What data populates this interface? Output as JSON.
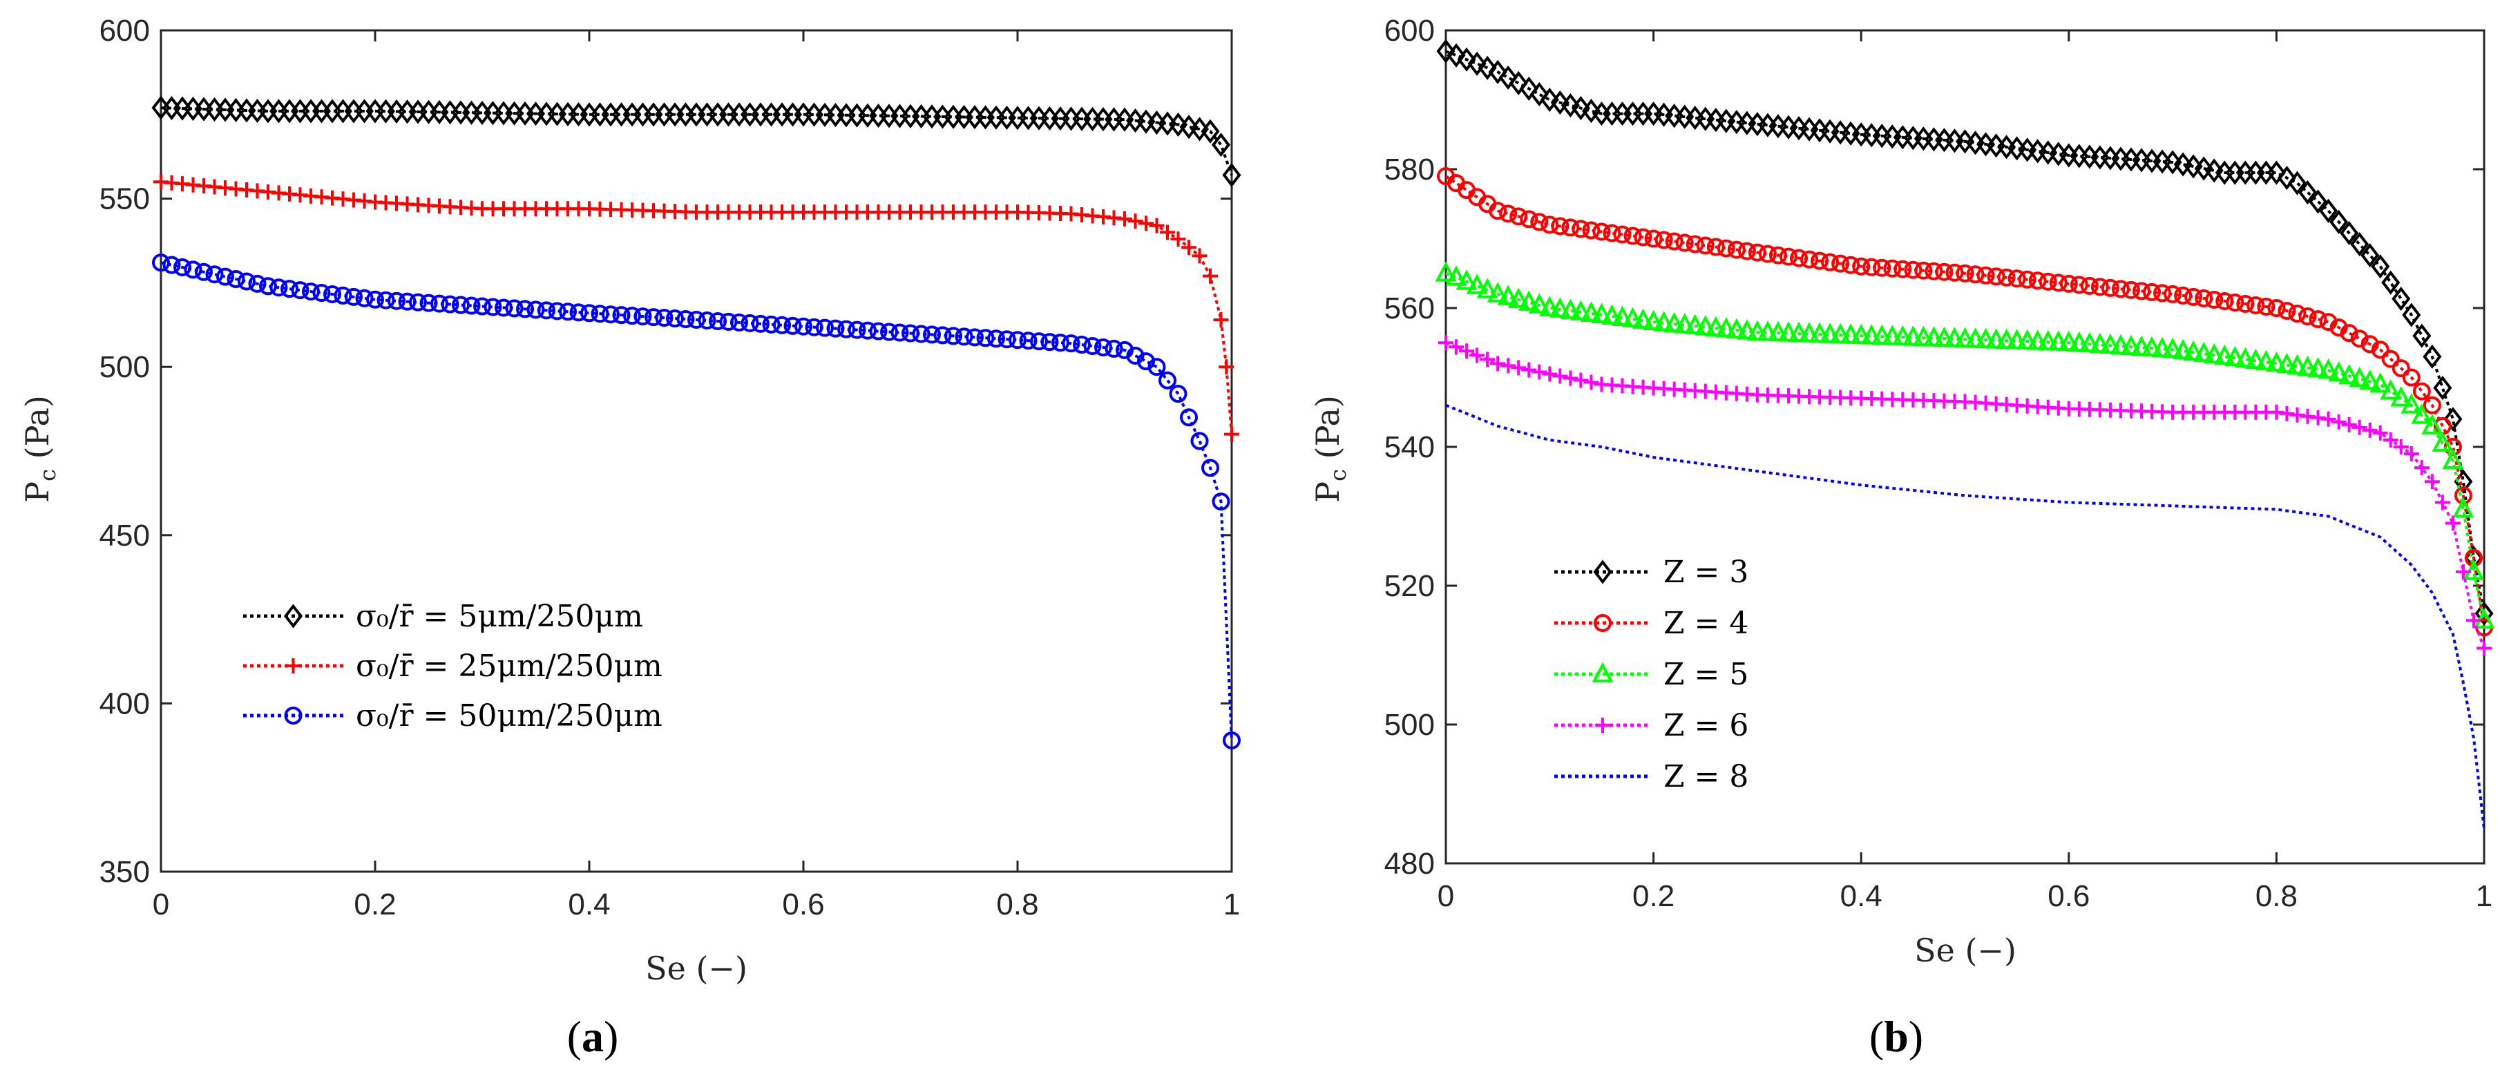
{
  "chart_data": [
    {
      "type": "line",
      "caption": "(a)",
      "caption_parts": {
        "open": "(",
        "letter": "a",
        "close": ")"
      },
      "xlabel": "Se (−)",
      "ylabel": "P_c (Pa)",
      "ylabel_parts": {
        "main": "P",
        "sub": "c",
        "rest": " (Pa)"
      },
      "xlim": [
        0,
        1
      ],
      "ylim": [
        350,
        600
      ],
      "xticks": [
        0,
        0.2,
        0.4,
        0.6,
        0.8,
        1
      ],
      "xtick_labels": [
        "0",
        "0.2",
        "0.4",
        "0.6",
        "0.8",
        "1"
      ],
      "yticks": [
        350,
        400,
        450,
        500,
        550,
        600
      ],
      "ytick_labels": [
        "350",
        "400",
        "450",
        "500",
        "550",
        "600"
      ],
      "grid": false,
      "legend_position": "lower-left",
      "series": [
        {
          "name": "σ₀/r̄ = 5μm/250μm",
          "color": "#000000",
          "marker": "diamond",
          "x": [
            0,
            0.1,
            0.2,
            0.3,
            0.4,
            0.5,
            0.6,
            0.7,
            0.8,
            0.9,
            0.95,
            0.98,
            0.99,
            1.0
          ],
          "y": [
            577,
            576,
            576,
            575.5,
            575,
            575,
            575,
            574.5,
            574,
            573.5,
            572,
            570,
            566,
            557
          ]
        },
        {
          "name": "σ₀/r̄ = 25μm/250μm",
          "color": "#ff0000",
          "marker": "plus",
          "x": [
            0,
            0.1,
            0.2,
            0.3,
            0.4,
            0.5,
            0.6,
            0.7,
            0.8,
            0.85,
            0.9,
            0.93,
            0.95,
            0.97,
            0.98,
            0.99,
            0.995,
            1.0
          ],
          "y": [
            555,
            552,
            549,
            547,
            547,
            546,
            546,
            546,
            546,
            545.5,
            544,
            542,
            538,
            533,
            527,
            514,
            500,
            480
          ]
        },
        {
          "name": "σ₀/r̄ = 50μm/250μm",
          "color": "#0000ff",
          "marker": "circle",
          "x": [
            0,
            0.1,
            0.2,
            0.3,
            0.4,
            0.5,
            0.6,
            0.7,
            0.8,
            0.85,
            0.9,
            0.93,
            0.95,
            0.96,
            0.97,
            0.98,
            0.99,
            1.0
          ],
          "y": [
            531,
            524,
            520,
            518,
            516,
            514,
            512,
            510,
            508,
            507,
            505,
            500,
            492,
            485,
            478,
            470,
            460,
            389
          ]
        }
      ]
    },
    {
      "type": "line",
      "caption": "(b)",
      "caption_parts": {
        "open": "(",
        "letter": "b",
        "close": ")"
      },
      "xlabel": "Se (−)",
      "ylabel": "P_c (Pa)",
      "ylabel_parts": {
        "main": "P",
        "sub": "c",
        "rest": " (Pa)"
      },
      "xlim": [
        0,
        1
      ],
      "ylim": [
        480,
        600
      ],
      "xticks": [
        0,
        0.2,
        0.4,
        0.6,
        0.8,
        1
      ],
      "xtick_labels": [
        "0",
        "0.2",
        "0.4",
        "0.6",
        "0.8",
        "1"
      ],
      "yticks": [
        480,
        500,
        520,
        540,
        560,
        580,
        600
      ],
      "ytick_labels": [
        "480",
        "500",
        "520",
        "540",
        "560",
        "580",
        "600"
      ],
      "grid": false,
      "legend_position": "lower-left",
      "series": [
        {
          "name": "Z = 3",
          "color": "#000000",
          "marker": "diamond",
          "x": [
            0,
            0.05,
            0.1,
            0.15,
            0.2,
            0.3,
            0.4,
            0.5,
            0.6,
            0.7,
            0.75,
            0.8,
            0.82,
            0.85,
            0.9,
            0.93,
            0.95,
            0.97,
            0.98,
            0.99,
            1.0
          ],
          "y": [
            597,
            594,
            590,
            588,
            588,
            586.5,
            585,
            584,
            582,
            581,
            579.5,
            579.5,
            578,
            574,
            566,
            559,
            553,
            544,
            535,
            524,
            516
          ]
        },
        {
          "name": "Z = 4",
          "color": "#ff0000",
          "marker": "circle",
          "x": [
            0,
            0.05,
            0.1,
            0.15,
            0.2,
            0.3,
            0.4,
            0.5,
            0.6,
            0.7,
            0.75,
            0.8,
            0.85,
            0.9,
            0.93,
            0.95,
            0.97,
            0.98,
            0.99,
            1.0
          ],
          "y": [
            579,
            574,
            572,
            571,
            570,
            568,
            566,
            565,
            563.5,
            562,
            561,
            560,
            558,
            554,
            550,
            546,
            540,
            533,
            524,
            514
          ]
        },
        {
          "name": "Z = 5",
          "color": "#00ff00",
          "marker": "triangle",
          "x": [
            0,
            0.05,
            0.1,
            0.15,
            0.2,
            0.3,
            0.4,
            0.5,
            0.6,
            0.7,
            0.8,
            0.85,
            0.9,
            0.93,
            0.95,
            0.97,
            0.98,
            0.99,
            1.0
          ],
          "y": [
            565,
            562,
            560,
            559,
            558,
            556.5,
            556,
            555.5,
            555,
            554,
            552,
            551,
            549,
            546,
            543,
            538,
            531,
            522,
            515
          ]
        },
        {
          "name": "Z = 6",
          "color": "#ff00ff",
          "marker": "plus",
          "x": [
            0,
            0.05,
            0.1,
            0.15,
            0.2,
            0.3,
            0.4,
            0.5,
            0.6,
            0.7,
            0.8,
            0.85,
            0.9,
            0.93,
            0.95,
            0.97,
            0.98,
            0.99,
            1.0
          ],
          "y": [
            555,
            552,
            550.5,
            549,
            548.5,
            547.5,
            547,
            546.5,
            545.5,
            545,
            545,
            544,
            542,
            539,
            535,
            529,
            522,
            515,
            511
          ]
        },
        {
          "name": "Z = 8",
          "color": "#0000ff",
          "marker": "none",
          "x": [
            0,
            0.05,
            0.1,
            0.15,
            0.2,
            0.3,
            0.4,
            0.5,
            0.6,
            0.7,
            0.8,
            0.85,
            0.9,
            0.93,
            0.95,
            0.97,
            0.98,
            0.99,
            1.0
          ],
          "y": [
            546,
            543,
            541,
            540,
            538.5,
            536.5,
            534.5,
            533,
            532,
            531.5,
            531,
            530,
            527,
            523,
            519,
            513,
            506,
            498,
            485
          ]
        }
      ]
    }
  ]
}
